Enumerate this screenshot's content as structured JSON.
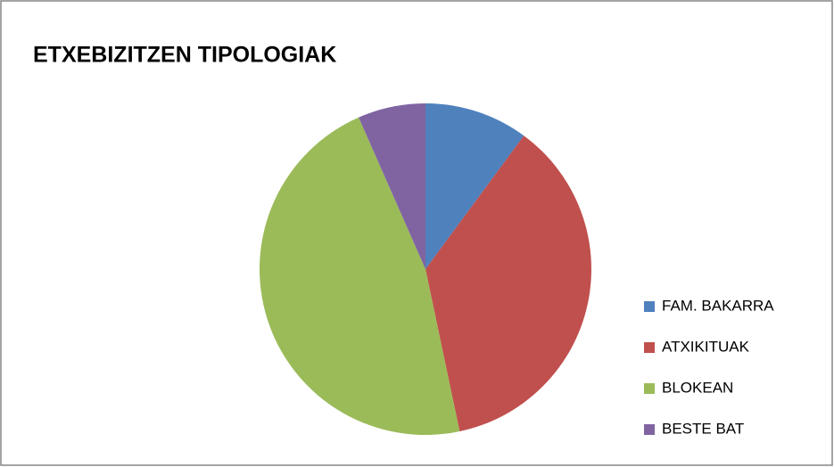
{
  "chart_data": {
    "type": "pie",
    "title": "ETXEBIZITZEN TIPOLOGIAK",
    "categories": [
      "FAM. BAKARRA",
      "ATXIKITUAK",
      "BLOKEAN",
      "BESTE BAT"
    ],
    "values": [
      10.1,
      36.6,
      46.7,
      6.6
    ],
    "colors": [
      "#4f81bd",
      "#c0504d",
      "#9bbb59",
      "#8064a2"
    ],
    "legend": "right"
  }
}
